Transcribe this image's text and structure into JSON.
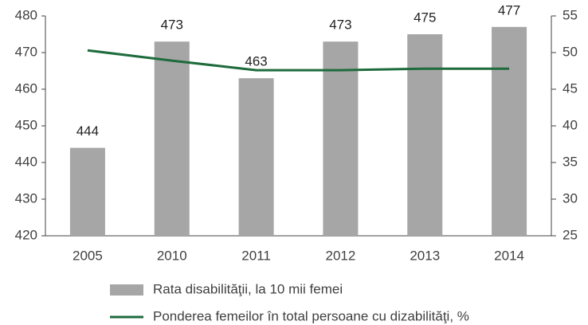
{
  "chart_data": {
    "type": "bar",
    "categories": [
      "2005",
      "2010",
      "2011",
      "2012",
      "2013",
      "2014"
    ],
    "series": [
      {
        "name": "Rata disabilităţii, la 10 mii femei",
        "type": "bar",
        "color": "#a6a6a6",
        "values": [
          444,
          473,
          463,
          473,
          475,
          477
        ]
      },
      {
        "name": "Ponderea femeilor în total persoane cu dizabilităţi, %",
        "type": "line",
        "axis": "y2",
        "color": "#1e6b3c",
        "values": [
          50.3,
          48.9,
          47.6,
          47.6,
          47.8,
          47.8
        ]
      }
    ],
    "ylim": [
      420,
      480
    ],
    "yticks": [
      420,
      430,
      440,
      450,
      460,
      470,
      480
    ],
    "y2lim": [
      25,
      55
    ],
    "y2ticks": [
      25,
      30,
      35,
      40,
      45,
      50,
      55
    ],
    "grid": false
  }
}
